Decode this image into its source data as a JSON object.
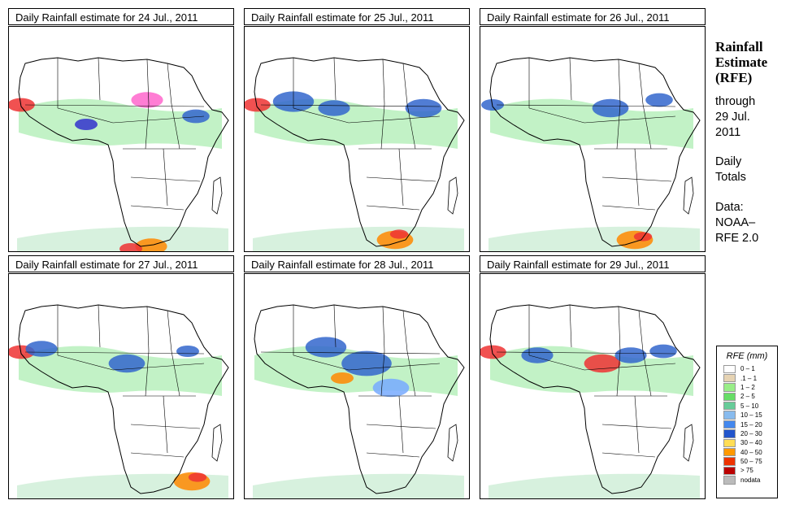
{
  "panels": [
    {
      "title": "Daily Rainfall estimate for  24 Jul., 2011",
      "rain": [
        [
          15,
          96,
          12,
          "#e33"
        ],
        [
          170,
          90,
          14,
          "#f6c"
        ],
        [
          95,
          120,
          10,
          "#33c"
        ],
        [
          230,
          110,
          12,
          "#36c"
        ],
        [
          175,
          270,
          14,
          "#f80"
        ],
        [
          150,
          273,
          10,
          "#e33"
        ]
      ]
    },
    {
      "title": "Daily Rainfall estimate for  25 Jul., 2011",
      "rain": [
        [
          15,
          96,
          12,
          "#e33"
        ],
        [
          60,
          92,
          18,
          "#36c"
        ],
        [
          110,
          100,
          14,
          "#36c"
        ],
        [
          220,
          100,
          16,
          "#36c"
        ],
        [
          185,
          262,
          16,
          "#f80"
        ],
        [
          190,
          255,
          8,
          "#e33"
        ]
      ]
    },
    {
      "title": "Daily Rainfall estimate for  26 Jul., 2011",
      "rain": [
        [
          15,
          96,
          10,
          "#36c"
        ],
        [
          160,
          100,
          16,
          "#36c"
        ],
        [
          220,
          90,
          12,
          "#36c"
        ],
        [
          190,
          262,
          16,
          "#f80"
        ],
        [
          200,
          258,
          8,
          "#e33"
        ]
      ]
    },
    {
      "title": "Daily Rainfall estimate for  27 Jul., 2011",
      "rain": [
        [
          15,
          96,
          12,
          "#e33"
        ],
        [
          40,
          92,
          14,
          "#36c"
        ],
        [
          145,
          110,
          16,
          "#36c"
        ],
        [
          220,
          95,
          10,
          "#36c"
        ],
        [
          225,
          255,
          16,
          "#f80"
        ],
        [
          232,
          250,
          8,
          "#e33"
        ]
      ]
    },
    {
      "title": "Daily Rainfall estimate for  28 Jul., 2011",
      "rain": [
        [
          100,
          90,
          18,
          "#36c"
        ],
        [
          150,
          110,
          22,
          "#36c"
        ],
        [
          180,
          140,
          16,
          "#7af"
        ],
        [
          120,
          128,
          10,
          "#f80"
        ]
      ]
    },
    {
      "title": "Daily Rainfall estimate for  29 Jul., 2011",
      "rain": [
        [
          15,
          96,
          12,
          "#e33"
        ],
        [
          70,
          100,
          14,
          "#36c"
        ],
        [
          150,
          110,
          16,
          "#e33"
        ],
        [
          185,
          100,
          14,
          "#36c"
        ],
        [
          225,
          95,
          12,
          "#36c"
        ]
      ]
    }
  ],
  "side": {
    "title_line1": "Rainfall",
    "title_line2": "Estimate",
    "title_line3": "(RFE)",
    "through": "through",
    "date_line1": "29 Jul.",
    "date_line2": "2011",
    "daily": "Daily",
    "totals": "Totals",
    "data_label": "Data:",
    "source_line1": "NOAA–",
    "source_line2": "RFE 2.0"
  },
  "legend": {
    "title": "RFE (mm)",
    "items": [
      {
        "label": "0 – 1",
        "color": "#ffffff"
      },
      {
        "label": ".1 – 1",
        "color": "#e6d3b3"
      },
      {
        "label": "1 – 2",
        "color": "#99ee88"
      },
      {
        "label": "2 – 5",
        "color": "#66dd66"
      },
      {
        "label": "5 – 10",
        "color": "#66cc99"
      },
      {
        "label": "10 – 15",
        "color": "#88bbee"
      },
      {
        "label": "15 – 20",
        "color": "#4488ee"
      },
      {
        "label": "20 – 30",
        "color": "#2255cc"
      },
      {
        "label": "30 – 40",
        "color": "#ffdd55"
      },
      {
        "label": "40 – 50",
        "color": "#ff9900"
      },
      {
        "label": "50 – 75",
        "color": "#ee3300"
      },
      {
        "label": "> 75",
        "color": "#bb0000"
      },
      {
        "label": "nodata",
        "color": "#bbbbbb"
      }
    ]
  }
}
